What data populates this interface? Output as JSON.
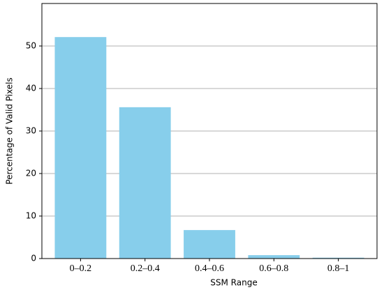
{
  "chart_data": {
    "type": "bar",
    "x_label": "SSM Range",
    "y_label": "Percentage of Valid Pixels",
    "categories": [
      "0–0.2",
      "0.2–0.4",
      "0.4–0.6",
      "0.6–0.8",
      "0.8–1"
    ],
    "values": [
      52.1,
      35.6,
      6.7,
      0.8,
      0.2
    ],
    "color": "#87ceeb",
    "ylim": [
      0,
      60
    ],
    "yticks": [
      0,
      10,
      20,
      30,
      40,
      50
    ],
    "grid": true
  }
}
